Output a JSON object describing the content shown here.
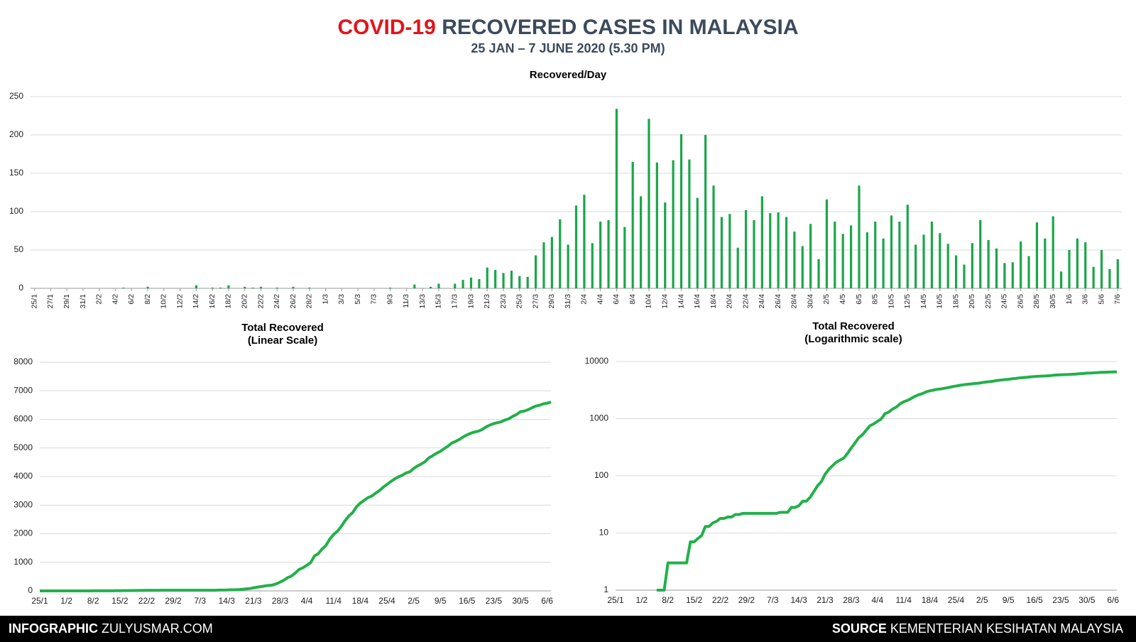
{
  "header": {
    "title_highlight": "COVID-19",
    "title": "RECOVERED CASES IN MALAYSIA",
    "subtitle": "25 JAN – 7 JUNE 2020 (5.30 PM)"
  },
  "footer": {
    "left_label": "INFOGRAPHIC",
    "left_text": "ZULYUSMAR.COM",
    "right_label": "SOURCE",
    "right_text": "KEMENTERIAN KESIHATAN MALAYSIA"
  },
  "chart_data": [
    {
      "type": "bar",
      "title": "Recovered/Day",
      "color": "#1aa64a",
      "grid": true,
      "ylim": [
        0,
        250
      ],
      "yticks": [
        0,
        50,
        100,
        150,
        200,
        250
      ],
      "categories": [
        "25/1",
        null,
        "27/1",
        null,
        "29/1",
        null,
        "31/1",
        null,
        "2/2",
        null,
        "4/2",
        null,
        "6/2",
        null,
        "8/2",
        null,
        "10/2",
        null,
        "12/2",
        null,
        "14/2",
        null,
        "16/2",
        null,
        "18/2",
        null,
        "20/2",
        null,
        "22/2",
        null,
        "24/2",
        null,
        "26/2",
        null,
        "28/2",
        null,
        "1/3",
        null,
        "3/3",
        null,
        "5/3",
        null,
        "7/3",
        null,
        "9/3",
        null,
        "11/3",
        null,
        "13/3",
        null,
        "15/3",
        null,
        "17/3",
        null,
        "19/3",
        null,
        "21/3",
        null,
        "23/3",
        null,
        "25/3",
        null,
        "27/3",
        null,
        "29/3",
        null,
        "31/3",
        null,
        "2/4",
        null,
        "4/4",
        null,
        "6/4",
        null,
        "8/4",
        null,
        "10/4",
        null,
        "12/4",
        null,
        "14/4",
        null,
        "16/4",
        null,
        "18/4",
        null,
        "20/4",
        null,
        "22/4",
        null,
        "24/4",
        null,
        "26/4",
        null,
        "28/4",
        null,
        "30/4",
        null,
        "2/5",
        null,
        "4/5",
        null,
        "6/5",
        null,
        "8/5",
        null,
        "10/5",
        null,
        "12/5",
        null,
        "14/5",
        null,
        "16/5",
        null,
        "18/5",
        null,
        "20/5",
        null,
        "22/5",
        null,
        "24/5",
        null,
        "26/5",
        null,
        "28/5",
        null,
        "30/5",
        null,
        "1/6",
        null,
        "3/6",
        null,
        "5/6",
        null,
        "7/6"
      ],
      "values": [
        0,
        0,
        0,
        0,
        0,
        0,
        0,
        0,
        0,
        0,
        0,
        1,
        0,
        0,
        2,
        0,
        0,
        0,
        0,
        0,
        4,
        0,
        1,
        1,
        4,
        0,
        2,
        1,
        2,
        0,
        1,
        0,
        2,
        0,
        1,
        0,
        0,
        0,
        0,
        0,
        0,
        0,
        0,
        0,
        1,
        0,
        0,
        5,
        0,
        2,
        6,
        0,
        6,
        11,
        14,
        12,
        27,
        24,
        20,
        23,
        16,
        15,
        43,
        60,
        67,
        90,
        57,
        108,
        122,
        59,
        87,
        89,
        234,
        80,
        165,
        120,
        221,
        164,
        112,
        167,
        201,
        168,
        118,
        200,
        134,
        93,
        97,
        53,
        102,
        89,
        120,
        98,
        99,
        93,
        74,
        55,
        84,
        38,
        116,
        87,
        71,
        82,
        134,
        73,
        87,
        65,
        95,
        87,
        109,
        57,
        70,
        87,
        72,
        58,
        43,
        31,
        59,
        89,
        63,
        52,
        33,
        34,
        61,
        42,
        86,
        65,
        94,
        22,
        50,
        65,
        60,
        28,
        50,
        25,
        38
      ]
    },
    {
      "type": "line",
      "title": "Total Recovered",
      "subtitle": "(Linear Scale)",
      "color": "#22b04a",
      "grid": true,
      "ylim": [
        0,
        8000
      ],
      "yticks": [
        0,
        1000,
        2000,
        3000,
        4000,
        5000,
        6000,
        7000,
        8000
      ],
      "categories": [
        "25/1",
        null,
        null,
        null,
        null,
        null,
        null,
        "1/2",
        null,
        null,
        null,
        null,
        null,
        null,
        "8/2",
        null,
        null,
        null,
        null,
        null,
        null,
        "15/2",
        null,
        null,
        null,
        null,
        null,
        null,
        "22/2",
        null,
        null,
        null,
        null,
        null,
        null,
        "29/2",
        null,
        null,
        null,
        null,
        null,
        null,
        "7/3",
        null,
        null,
        null,
        null,
        null,
        null,
        "14/3",
        null,
        null,
        null,
        null,
        null,
        null,
        "21/3",
        null,
        null,
        null,
        null,
        null,
        null,
        "28/3",
        null,
        null,
        null,
        null,
        null,
        null,
        "4/4",
        null,
        null,
        null,
        null,
        null,
        null,
        "11/4",
        null,
        null,
        null,
        null,
        null,
        null,
        "18/4",
        null,
        null,
        null,
        null,
        null,
        null,
        "25/4",
        null,
        null,
        null,
        null,
        null,
        null,
        "2/5",
        null,
        null,
        null,
        null,
        null,
        null,
        "9/5",
        null,
        null,
        null,
        null,
        null,
        null,
        "16/5",
        null,
        null,
        null,
        null,
        null,
        null,
        "23/5",
        null,
        null,
        null,
        null,
        null,
        null,
        "30/5",
        null,
        null,
        null,
        null,
        null,
        null,
        "6/6",
        null
      ],
      "values": [
        0,
        0,
        0,
        0,
        0,
        0,
        0,
        0,
        0,
        0,
        0,
        1,
        1,
        1,
        3,
        3,
        3,
        3,
        3,
        3,
        7,
        7,
        8,
        9,
        13,
        13,
        15,
        16,
        18,
        18,
        19,
        19,
        21,
        21,
        22,
        22,
        22,
        22,
        22,
        22,
        22,
        22,
        22,
        22,
        23,
        23,
        23,
        28,
        28,
        30,
        36,
        36,
        42,
        53,
        67,
        79,
        106,
        130,
        150,
        173,
        189,
        204,
        247,
        307,
        374,
        464,
        521,
        629,
        751,
        810,
        897,
        986,
        1220,
        1300,
        1465,
        1585,
        1806,
        1970,
        2082,
        2249,
        2450,
        2618,
        2736,
        2936,
        3070,
        3163,
        3260,
        3313,
        3415,
        3504,
        3624,
        3722,
        3821,
        3914,
        3988,
        4043,
        4127,
        4165,
        4281,
        4368,
        4439,
        4521,
        4655,
        4728,
        4815,
        4880,
        4975,
        5062,
        5171,
        5228,
        5298,
        5385,
        5457,
        5515,
        5558,
        5589,
        5648,
        5737,
        5800,
        5852,
        5885,
        5919,
        5980,
        6022,
        6108,
        6173,
        6267,
        6289,
        6339,
        6404,
        6464,
        6492,
        6542,
        6567,
        6605
      ]
    },
    {
      "type": "line",
      "title": "Total Recovered",
      "subtitle": "(Logarithmic scale)",
      "color": "#22b04a",
      "grid": true,
      "log": true,
      "ylim": [
        1,
        10000
      ],
      "yticks": [
        1,
        10,
        100,
        1000,
        10000
      ],
      "categories": [
        "25/1",
        null,
        null,
        null,
        null,
        null,
        null,
        "1/2",
        null,
        null,
        null,
        null,
        null,
        null,
        "8/2",
        null,
        null,
        null,
        null,
        null,
        null,
        "15/2",
        null,
        null,
        null,
        null,
        null,
        null,
        "22/2",
        null,
        null,
        null,
        null,
        null,
        null,
        "29/2",
        null,
        null,
        null,
        null,
        null,
        null,
        "7/3",
        null,
        null,
        null,
        null,
        null,
        null,
        "14/3",
        null,
        null,
        null,
        null,
        null,
        null,
        "21/3",
        null,
        null,
        null,
        null,
        null,
        null,
        "28/3",
        null,
        null,
        null,
        null,
        null,
        null,
        "4/4",
        null,
        null,
        null,
        null,
        null,
        null,
        "11/4",
        null,
        null,
        null,
        null,
        null,
        null,
        "18/4",
        null,
        null,
        null,
        null,
        null,
        null,
        "25/4",
        null,
        null,
        null,
        null,
        null,
        null,
        "2/5",
        null,
        null,
        null,
        null,
        null,
        null,
        "9/5",
        null,
        null,
        null,
        null,
        null,
        null,
        "16/5",
        null,
        null,
        null,
        null,
        null,
        null,
        "23/5",
        null,
        null,
        null,
        null,
        null,
        null,
        "30/5",
        null,
        null,
        null,
        null,
        null,
        null,
        "6/6",
        null
      ],
      "values": [
        null,
        null,
        null,
        null,
        null,
        null,
        null,
        null,
        null,
        null,
        null,
        1,
        1,
        1,
        3,
        3,
        3,
        3,
        3,
        3,
        7,
        7,
        8,
        9,
        13,
        13,
        15,
        16,
        18,
        18,
        19,
        19,
        21,
        21,
        22,
        22,
        22,
        22,
        22,
        22,
        22,
        22,
        22,
        22,
        23,
        23,
        23,
        28,
        28,
        30,
        36,
        36,
        42,
        53,
        67,
        79,
        106,
        130,
        150,
        173,
        189,
        204,
        247,
        307,
        374,
        464,
        521,
        629,
        751,
        810,
        897,
        986,
        1220,
        1300,
        1465,
        1585,
        1806,
        1970,
        2082,
        2249,
        2450,
        2618,
        2736,
        2936,
        3070,
        3163,
        3260,
        3313,
        3415,
        3504,
        3624,
        3722,
        3821,
        3914,
        3988,
        4043,
        4127,
        4165,
        4281,
        4368,
        4439,
        4521,
        4655,
        4728,
        4815,
        4880,
        4975,
        5062,
        5171,
        5228,
        5298,
        5385,
        5457,
        5515,
        5558,
        5589,
        5648,
        5737,
        5800,
        5852,
        5885,
        5919,
        5980,
        6022,
        6108,
        6173,
        6267,
        6289,
        6339,
        6404,
        6464,
        6492,
        6542,
        6567,
        6605
      ]
    }
  ]
}
